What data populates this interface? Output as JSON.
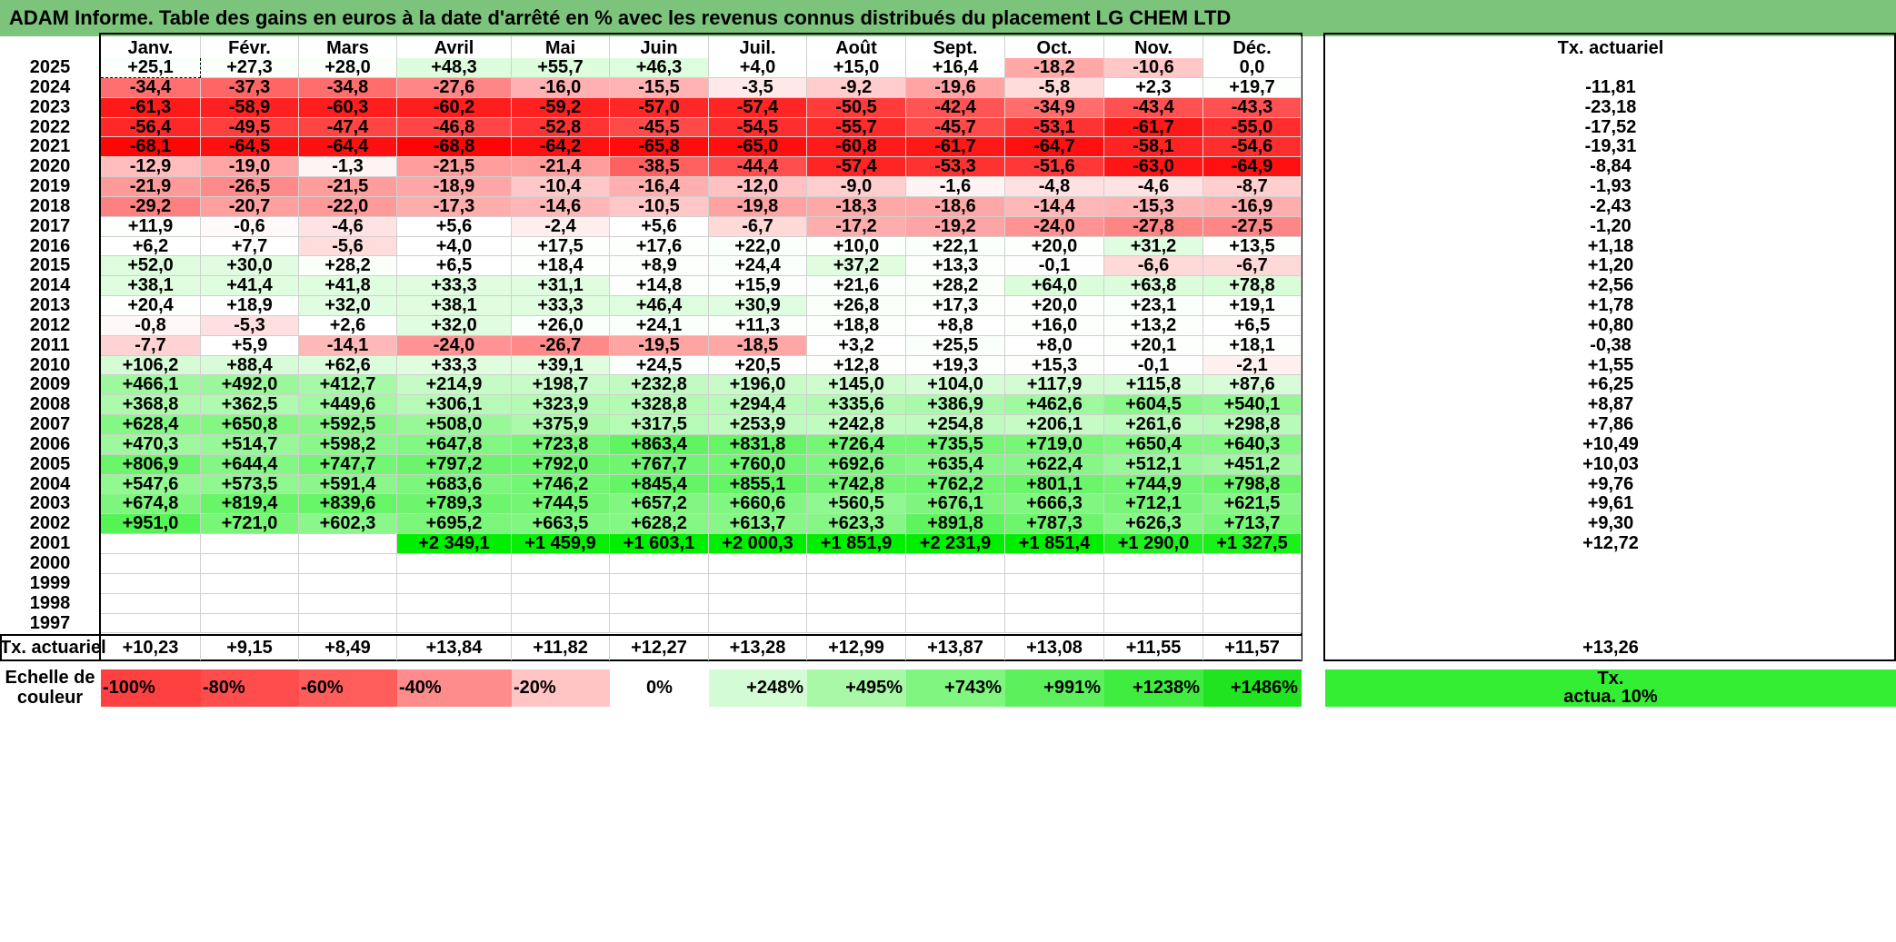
{
  "title": "ADAM Informe. Table des gains en euros à la date d'arrêté en % avec les revenus connus distribués du placement LG CHEM LTD",
  "months": [
    "Janv.",
    "Févr.",
    "Mars",
    "Avril",
    "Mai",
    "Juin",
    "Juil.",
    "Août",
    "Sept.",
    "Oct.",
    "Nov.",
    "Déc."
  ],
  "rate_header": "Tx. actuariel",
  "rows": [
    {
      "year": "2025",
      "values": [
        "+25,1",
        "+27,3",
        "+28,0",
        "+48,3",
        "+55,7",
        "+46,3",
        "+4,0",
        "+15,0",
        "+16,4",
        "-18,2",
        "-10,6",
        "0,0"
      ],
      "rate": ""
    },
    {
      "year": "2024",
      "values": [
        "-34,4",
        "-37,3",
        "-34,8",
        "-27,6",
        "-16,0",
        "-15,5",
        "-3,5",
        "-9,2",
        "-19,6",
        "-5,8",
        "+2,3",
        "+19,7"
      ],
      "rate": "-11,81"
    },
    {
      "year": "2023",
      "values": [
        "-61,3",
        "-58,9",
        "-60,3",
        "-60,2",
        "-59,2",
        "-57,0",
        "-57,4",
        "-50,5",
        "-42,4",
        "-34,9",
        "-43,4",
        "-43,3"
      ],
      "rate": "-23,18"
    },
    {
      "year": "2022",
      "values": [
        "-56,4",
        "-49,5",
        "-47,4",
        "-46,8",
        "-52,8",
        "-45,5",
        "-54,5",
        "-55,7",
        "-45,7",
        "-53,1",
        "-61,7",
        "-55,0"
      ],
      "rate": "-17,52"
    },
    {
      "year": "2021",
      "values": [
        "-68,1",
        "-64,5",
        "-64,4",
        "-68,8",
        "-64,2",
        "-65,8",
        "-65,0",
        "-60,8",
        "-61,7",
        "-64,7",
        "-58,1",
        "-54,6"
      ],
      "rate": "-19,31"
    },
    {
      "year": "2020",
      "values": [
        "-12,9",
        "-19,0",
        "-1,3",
        "-21,5",
        "-21,4",
        "-38,5",
        "-44,4",
        "-57,4",
        "-53,3",
        "-51,6",
        "-63,0",
        "-64,9"
      ],
      "rate": "-8,84"
    },
    {
      "year": "2019",
      "values": [
        "-21,9",
        "-26,5",
        "-21,5",
        "-18,9",
        "-10,4",
        "-16,4",
        "-12,0",
        "-9,0",
        "-1,6",
        "-4,8",
        "-4,6",
        "-8,7"
      ],
      "rate": "-1,93"
    },
    {
      "year": "2018",
      "values": [
        "-29,2",
        "-20,7",
        "-22,0",
        "-17,3",
        "-14,6",
        "-10,5",
        "-19,8",
        "-18,3",
        "-18,6",
        "-14,4",
        "-15,3",
        "-16,9"
      ],
      "rate": "-2,43"
    },
    {
      "year": "2017",
      "values": [
        "+11,9",
        "-0,6",
        "-4,6",
        "+5,6",
        "-2,4",
        "+5,6",
        "-6,7",
        "-17,2",
        "-19,2",
        "-24,0",
        "-27,8",
        "-27,5"
      ],
      "rate": "-1,20"
    },
    {
      "year": "2016",
      "values": [
        "+6,2",
        "+7,7",
        "-5,6",
        "+4,0",
        "+17,5",
        "+17,6",
        "+22,0",
        "+10,0",
        "+22,1",
        "+20,0",
        "+31,2",
        "+13,5"
      ],
      "rate": "+1,18"
    },
    {
      "year": "2015",
      "values": [
        "+52,0",
        "+30,0",
        "+28,2",
        "+6,5",
        "+18,4",
        "+8,9",
        "+24,4",
        "+37,2",
        "+13,3",
        "-0,1",
        "-6,6",
        "-6,7"
      ],
      "rate": "+1,20"
    },
    {
      "year": "2014",
      "values": [
        "+38,1",
        "+41,4",
        "+41,8",
        "+33,3",
        "+31,1",
        "+14,8",
        "+15,9",
        "+21,6",
        "+28,2",
        "+64,0",
        "+63,8",
        "+78,8"
      ],
      "rate": "+2,56"
    },
    {
      "year": "2013",
      "values": [
        "+20,4",
        "+18,9",
        "+32,0",
        "+38,1",
        "+33,3",
        "+46,4",
        "+30,9",
        "+26,8",
        "+17,3",
        "+20,0",
        "+23,1",
        "+19,1"
      ],
      "rate": "+1,78"
    },
    {
      "year": "2012",
      "values": [
        "-0,8",
        "-5,3",
        "+2,6",
        "+32,0",
        "+26,0",
        "+24,1",
        "+11,3",
        "+18,8",
        "+8,8",
        "+16,0",
        "+13,2",
        "+6,5"
      ],
      "rate": "+0,80"
    },
    {
      "year": "2011",
      "values": [
        "-7,7",
        "+5,9",
        "-14,1",
        "-24,0",
        "-26,7",
        "-19,5",
        "-18,5",
        "+3,2",
        "+25,5",
        "+8,0",
        "+20,1",
        "+18,1"
      ],
      "rate": "-0,38"
    },
    {
      "year": "2010",
      "values": [
        "+106,2",
        "+88,4",
        "+62,6",
        "+33,3",
        "+39,1",
        "+24,5",
        "+20,5",
        "+12,8",
        "+19,3",
        "+15,3",
        "-0,1",
        "-2,1"
      ],
      "rate": "+1,55"
    },
    {
      "year": "2009",
      "values": [
        "+466,1",
        "+492,0",
        "+412,7",
        "+214,9",
        "+198,7",
        "+232,8",
        "+196,0",
        "+145,0",
        "+104,0",
        "+117,9",
        "+115,8",
        "+87,6"
      ],
      "rate": "+6,25"
    },
    {
      "year": "2008",
      "values": [
        "+368,8",
        "+362,5",
        "+449,6",
        "+306,1",
        "+323,9",
        "+328,8",
        "+294,4",
        "+335,6",
        "+386,9",
        "+462,6",
        "+604,5",
        "+540,1"
      ],
      "rate": "+8,87"
    },
    {
      "year": "2007",
      "values": [
        "+628,4",
        "+650,8",
        "+592,5",
        "+508,0",
        "+375,9",
        "+317,5",
        "+253,9",
        "+242,8",
        "+254,8",
        "+206,1",
        "+261,6",
        "+298,8"
      ],
      "rate": "+7,86"
    },
    {
      "year": "2006",
      "values": [
        "+470,3",
        "+514,7",
        "+598,2",
        "+647,8",
        "+723,8",
        "+863,4",
        "+831,8",
        "+726,4",
        "+735,5",
        "+719,0",
        "+650,4",
        "+640,3"
      ],
      "rate": "+10,49"
    },
    {
      "year": "2005",
      "values": [
        "+806,9",
        "+644,4",
        "+747,7",
        "+797,2",
        "+792,0",
        "+767,7",
        "+760,0",
        "+692,6",
        "+635,4",
        "+622,4",
        "+512,1",
        "+451,2"
      ],
      "rate": "+10,03"
    },
    {
      "year": "2004",
      "values": [
        "+547,6",
        "+573,5",
        "+591,4",
        "+683,6",
        "+746,2",
        "+845,4",
        "+855,1",
        "+742,8",
        "+762,2",
        "+801,1",
        "+744,9",
        "+798,8"
      ],
      "rate": "+9,76"
    },
    {
      "year": "2003",
      "values": [
        "+674,8",
        "+819,4",
        "+839,6",
        "+789,3",
        "+744,5",
        "+657,2",
        "+660,6",
        "+560,5",
        "+676,1",
        "+666,3",
        "+712,1",
        "+621,5"
      ],
      "rate": "+9,61"
    },
    {
      "year": "2002",
      "values": [
        "+951,0",
        "+721,0",
        "+602,3",
        "+695,2",
        "+663,5",
        "+628,2",
        "+613,7",
        "+623,3",
        "+891,8",
        "+787,3",
        "+626,3",
        "+713,7"
      ],
      "rate": "+9,30"
    },
    {
      "year": "2001",
      "values": [
        "",
        "",
        "",
        "+2 349,1",
        "+1 459,9",
        "+1 603,1",
        "+2 000,3",
        "+1 851,9",
        "+2 231,9",
        "+1 851,4",
        "+1 290,0",
        "+1 327,5"
      ],
      "rate": "+12,72"
    },
    {
      "year": "2000",
      "values": [
        "",
        "",
        "",
        "",
        "",
        "",
        "",
        "",
        "",
        "",
        "",
        ""
      ],
      "rate": ""
    },
    {
      "year": "1999",
      "values": [
        "",
        "",
        "",
        "",
        "",
        "",
        "",
        "",
        "",
        "",
        "",
        ""
      ],
      "rate": ""
    },
    {
      "year": "1998",
      "values": [
        "",
        "",
        "",
        "",
        "",
        "",
        "",
        "",
        "",
        "",
        "",
        ""
      ],
      "rate": ""
    },
    {
      "year": "1997",
      "values": [
        "",
        "",
        "",
        "",
        "",
        "",
        "",
        "",
        "",
        "",
        "",
        ""
      ],
      "rate": ""
    }
  ],
  "footer": {
    "label": "Tx. actuariel",
    "values": [
      "+10,23",
      "+9,15",
      "+8,49",
      "+13,84",
      "+11,82",
      "+12,27",
      "+13,28",
      "+12,99",
      "+13,87",
      "+13,08",
      "+11,55",
      "+11,57"
    ],
    "total": "+13,26"
  },
  "scale": {
    "label_line1": "Echelle de",
    "label_line2": "couleur",
    "items": [
      {
        "text": "-100%",
        "color": "#ff4040",
        "align": "left"
      },
      {
        "text": "-80%",
        "color": "#ff4d4d",
        "align": "left"
      },
      {
        "text": "-60%",
        "color": "#ff5c5c",
        "align": "left"
      },
      {
        "text": "-40%",
        "color": "#ff8c8c",
        "align": "left"
      },
      {
        "text": "-20%",
        "color": "#ffc4c4",
        "align": "left"
      },
      {
        "text": "0%",
        "color": "#ffffff",
        "align": "center"
      },
      {
        "text": "+248%",
        "color": "#d4fcd4",
        "align": "right"
      },
      {
        "text": "+495%",
        "color": "#a8f8a8",
        "align": "right"
      },
      {
        "text": "+743%",
        "color": "#80f580",
        "align": "right"
      },
      {
        "text": "+991%",
        "color": "#5cf05c",
        "align": "right"
      },
      {
        "text": "+1238%",
        "color": "#40ec40",
        "align": "right"
      },
      {
        "text": "+1486%",
        "color": "#20e420",
        "align": "right"
      }
    ],
    "rate_line1": "Tx.",
    "rate_line2": "actua. 10%",
    "rate_color": "#33ee33"
  },
  "colors": {
    "title_bg": "#7cc47c",
    "neg_max": "#ff0000",
    "pos_max": "#00ee00"
  }
}
